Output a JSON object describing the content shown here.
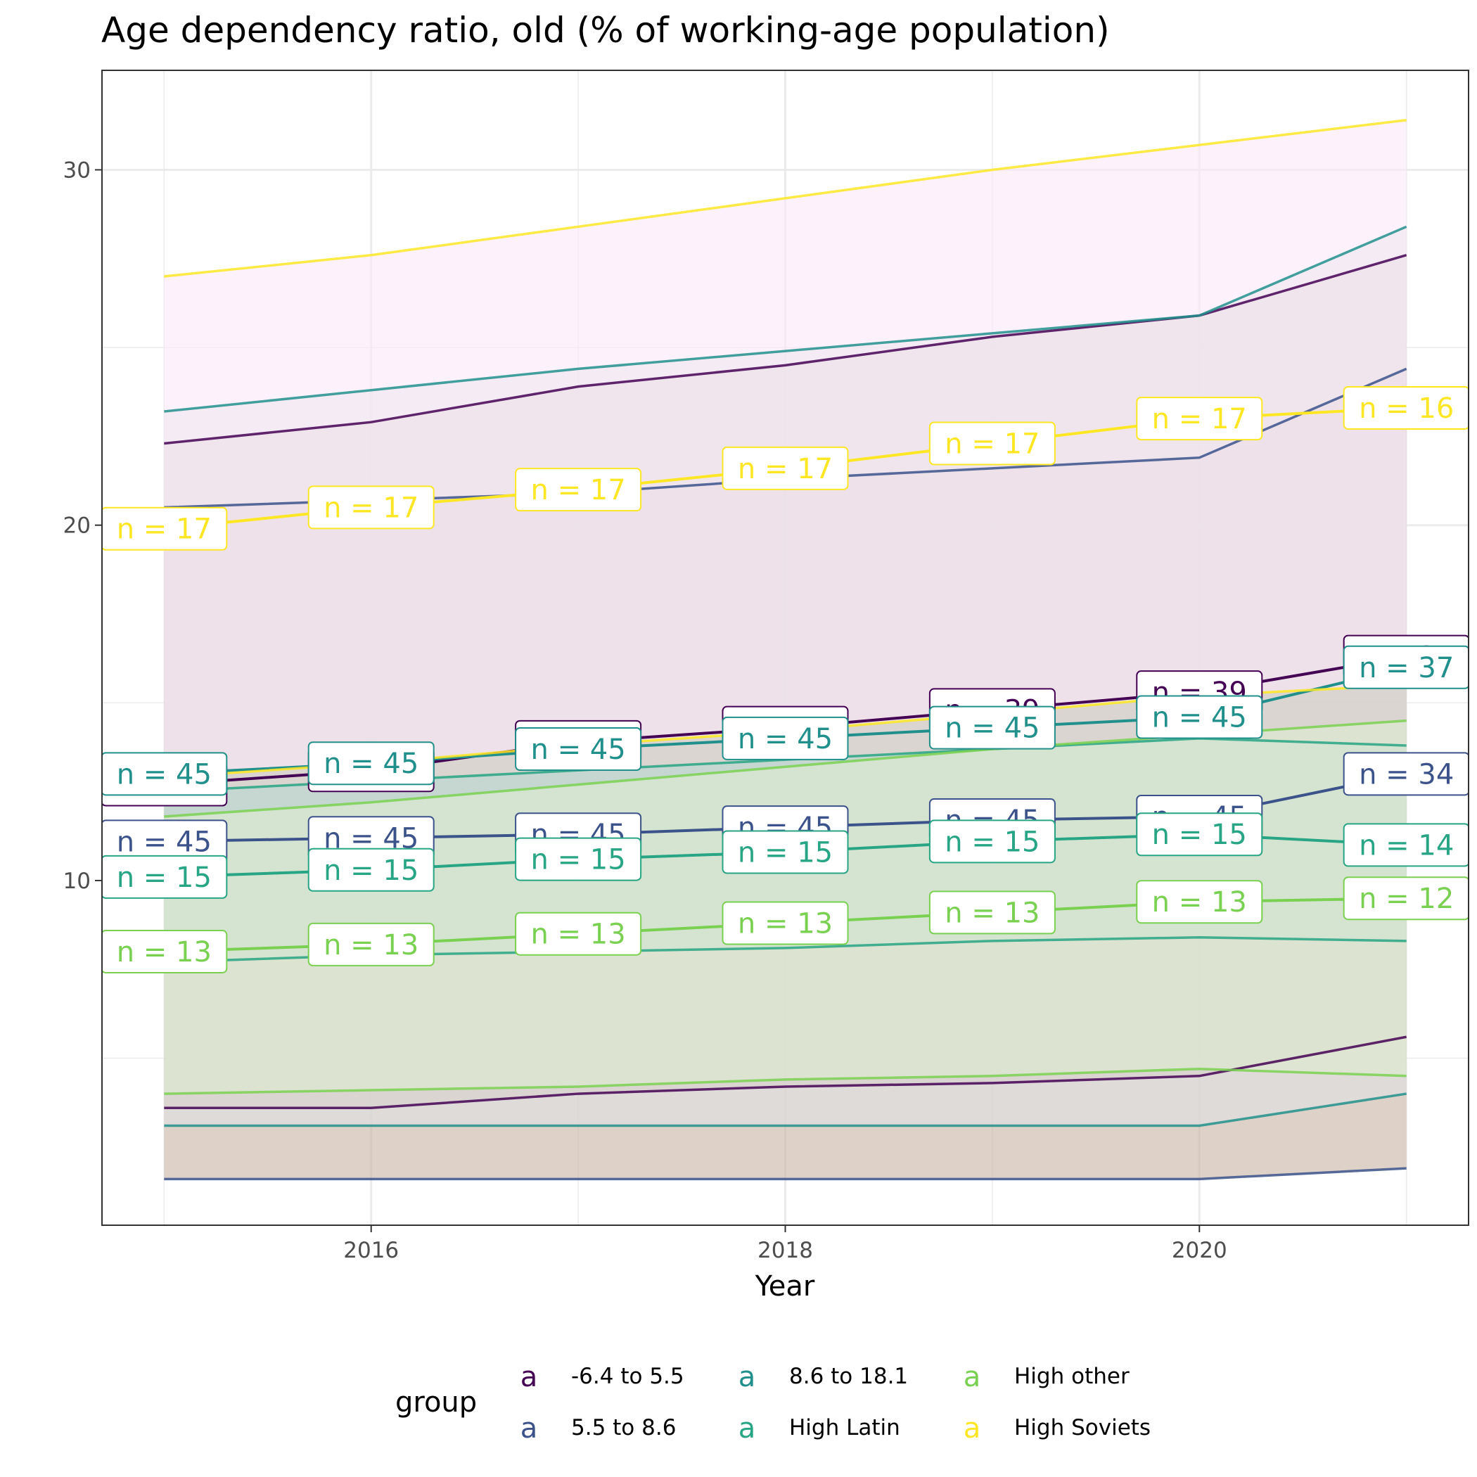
{
  "chart_data": {
    "type": "line",
    "title": "Age dependency ratio, old (% of working-age population)",
    "xlabel": "Year",
    "ylabel": "",
    "xlim": [
      2014.7,
      2021.3
    ],
    "ylim": [
      0.3,
      32.8
    ],
    "x_ticks": [
      2016,
      2018,
      2020
    ],
    "y_ticks": [
      10,
      20,
      30
    ],
    "grid": true,
    "legend": {
      "title": "group",
      "position": "bottom",
      "key_glyph": "a",
      "entries": [
        "-6.4 to 5.5",
        "5.5 to 8.6",
        "8.6 to 18.1",
        "High Latin",
        "High other",
        "High Soviets"
      ]
    },
    "x": [
      2015,
      2016,
      2017,
      2018,
      2019,
      2020,
      2021
    ],
    "series": [
      {
        "name": "-6.4 to 5.5",
        "color": "#440154",
        "ribbon_fill": "#c8c3ac",
        "mean": [
          12.7,
          13.1,
          13.9,
          14.3,
          14.8,
          15.3,
          16.3
        ],
        "upper": [
          22.3,
          22.9,
          23.9,
          24.5,
          25.3,
          25.9,
          27.6
        ],
        "lower": [
          3.6,
          3.6,
          4.0,
          4.2,
          4.3,
          4.5,
          5.6
        ],
        "n_labels": [
          "n = 45",
          "n = 45",
          "n = 45",
          "n = 45",
          "n = 39",
          "n = 39",
          "n = 37"
        ]
      },
      {
        "name": "5.5 to 8.6",
        "color": "#3b528b",
        "ribbon_fill": "#c8b4a4",
        "mean": [
          11.1,
          11.2,
          11.3,
          11.5,
          11.7,
          11.8,
          13.0
        ],
        "upper": [
          20.5,
          20.7,
          20.9,
          21.3,
          21.6,
          21.9,
          24.4
        ],
        "lower": [
          1.6,
          1.6,
          1.6,
          1.6,
          1.6,
          1.6,
          1.9
        ],
        "n_labels": [
          "n = 45",
          "n = 45",
          "n = 45",
          "n = 45",
          "n = 45",
          "n = 45",
          "n = 34"
        ]
      },
      {
        "name": "8.6 to 18.1",
        "color": "#21908c",
        "ribbon_fill": "#dfe1e2",
        "mean": [
          13.0,
          13.3,
          13.7,
          14.0,
          14.3,
          14.6,
          16.0
        ],
        "upper": [
          23.2,
          23.8,
          24.4,
          24.9,
          25.4,
          25.9,
          28.4
        ],
        "lower": [
          3.1,
          3.1,
          3.1,
          3.1,
          3.1,
          3.1,
          4.0
        ],
        "n_labels": [
          "n = 45",
          "n = 45",
          "n = 45",
          "n = 45",
          "n = 45",
          "n = 45",
          "n = 37"
        ]
      },
      {
        "name": "High Latin",
        "color": "#27a584",
        "ribbon_fill": "#b8d8d0",
        "mean": [
          10.1,
          10.3,
          10.6,
          10.8,
          11.1,
          11.3,
          11.0
        ],
        "upper": [
          12.5,
          12.8,
          13.1,
          13.4,
          13.7,
          14.0,
          13.8
        ],
        "lower": [
          7.7,
          7.9,
          8.0,
          8.1,
          8.3,
          8.4,
          8.3
        ],
        "n_labels": [
          "n = 15",
          "n = 15",
          "n = 15",
          "n = 15",
          "n = 15",
          "n = 15",
          "n = 14"
        ]
      },
      {
        "name": "High other",
        "color": "#7ad151",
        "ribbon_fill": "#ddecd0",
        "mean": [
          8.0,
          8.2,
          8.5,
          8.8,
          9.1,
          9.4,
          9.5
        ],
        "upper": [
          11.8,
          12.2,
          12.7,
          13.2,
          13.7,
          14.1,
          14.5
        ],
        "lower": [
          4.0,
          4.1,
          4.2,
          4.4,
          4.5,
          4.7,
          4.5
        ],
        "n_labels": [
          "n = 13",
          "n = 13",
          "n = 13",
          "n = 13",
          "n = 13",
          "n = 13",
          "n = 12"
        ]
      },
      {
        "name": "High Soviets",
        "color": "#fde725",
        "ribbon_fill": "#fbeafa",
        "mean": [
          19.9,
          20.5,
          21.0,
          21.6,
          22.3,
          23.0,
          23.3
        ],
        "upper": [
          27.0,
          27.6,
          28.4,
          29.2,
          30.0,
          30.7,
          31.4
        ],
        "lower": [
          12.9,
          13.3,
          13.8,
          14.2,
          14.7,
          15.2,
          15.5
        ],
        "n_labels": [
          "n = 17",
          "n = 17",
          "n = 17",
          "n = 17",
          "n = 17",
          "n = 17",
          "n = 16"
        ]
      }
    ]
  }
}
